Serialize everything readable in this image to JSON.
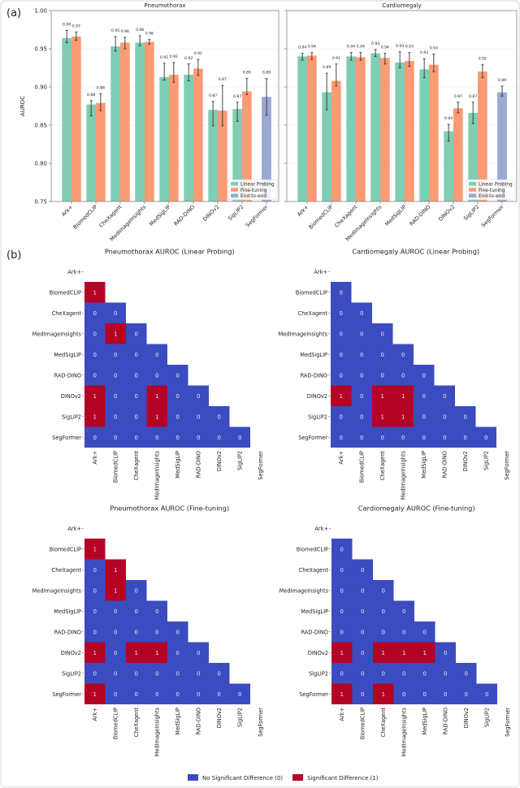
{
  "panel_labels": {
    "a": "(a)",
    "b": "(b)"
  },
  "colors": {
    "linear_probing": "#7fcdb4",
    "fine_tuning": "#fc9a74",
    "end_to_end": "#9aa8d2",
    "no_sig": "#3b4cc0",
    "sig": "#b40426"
  },
  "models": [
    "Ark+",
    "BiomedCLIP",
    "CheXagent",
    "MedImageInsights",
    "MedSigLIP",
    "RAD-DINO",
    "DINOv2",
    "SigLIP2",
    "SegFormer"
  ],
  "chart_data": [
    {
      "type": "bar",
      "title": "Pneumothorax",
      "ylabel": "AUROC",
      "ylim": [
        0.75,
        1.0
      ],
      "yticks": [
        "0.75",
        "0.80",
        "0.85",
        "0.90",
        "0.95",
        "1.00"
      ],
      "grid": true,
      "legend_position": "bottom-right",
      "series": [
        {
          "name": "Linear Probing",
          "values": [
            0.964,
            0.877,
            0.953,
            0.958,
            0.913,
            0.916,
            0.87,
            0.871,
            null
          ],
          "err_low": [
            0.958,
            0.862,
            0.947,
            0.954,
            0.909,
            0.908,
            0.849,
            0.855,
            null
          ],
          "err_high": [
            0.974,
            0.882,
            0.966,
            0.967,
            0.931,
            0.93,
            0.881,
            0.88,
            null
          ],
          "labels": [
            "0.96",
            "0.88",
            "0.95",
            "0.96",
            "0.91",
            "0.92",
            "0.87",
            "0.87",
            null
          ]
        },
        {
          "name": "Fine-tuning",
          "values": [
            0.966,
            0.879,
            0.958,
            0.959,
            0.916,
            0.924,
            0.869,
            0.894,
            null
          ],
          "err_low": [
            0.961,
            0.869,
            0.95,
            0.956,
            0.906,
            0.915,
            0.849,
            0.89,
            null
          ],
          "err_high": [
            0.972,
            0.891,
            0.965,
            0.962,
            0.932,
            0.936,
            0.902,
            0.911,
            null
          ],
          "labels": [
            "0.97",
            "0.88",
            "0.96",
            "0.96",
            "0.92",
            "0.92",
            "0.87",
            "0.89",
            null
          ]
        },
        {
          "name": "End-to-end",
          "values": [
            null,
            null,
            null,
            null,
            null,
            null,
            null,
            null,
            0.887
          ],
          "err_low": [
            null,
            null,
            null,
            null,
            null,
            null,
            null,
            null,
            0.863
          ],
          "err_high": [
            null,
            null,
            null,
            null,
            null,
            null,
            null,
            null,
            0.911
          ],
          "labels": [
            null,
            null,
            null,
            null,
            null,
            null,
            null,
            null,
            "0.89"
          ]
        }
      ]
    },
    {
      "type": "bar",
      "title": "Cardiomegaly",
      "ylabel": "",
      "ylim": [
        0.75,
        1.0
      ],
      "grid": true,
      "legend_position": "bottom-right",
      "series": [
        {
          "name": "Linear Probing",
          "values": [
            0.94,
            0.893,
            0.94,
            0.944,
            0.932,
            0.923,
            0.842,
            0.866,
            null
          ],
          "err_low": [
            0.935,
            0.87,
            0.935,
            0.94,
            0.925,
            0.912,
            0.829,
            0.852,
            null
          ],
          "err_high": [
            0.944,
            0.918,
            0.945,
            0.949,
            0.946,
            0.937,
            0.851,
            0.88,
            null
          ],
          "labels": [
            "0.94",
            "0.89",
            "0.94",
            "0.94",
            "0.93",
            "0.92",
            "0.84",
            "0.87",
            null
          ]
        },
        {
          "name": "Fine-tuning",
          "values": [
            0.941,
            0.908,
            0.939,
            0.938,
            0.934,
            0.929,
            0.872,
            0.92,
            null
          ],
          "err_low": [
            0.936,
            0.901,
            0.935,
            0.93,
            0.927,
            0.92,
            0.866,
            0.912,
            null
          ],
          "err_high": [
            0.945,
            0.93,
            0.945,
            0.944,
            0.945,
            0.943,
            0.88,
            0.929,
            null
          ],
          "labels": [
            "0.94",
            "0.91",
            "0.94",
            "0.94",
            "0.93",
            "0.93",
            "0.87",
            "0.92",
            null
          ]
        },
        {
          "name": "End-to-end",
          "values": [
            null,
            null,
            null,
            null,
            null,
            null,
            null,
            null,
            0.893
          ],
          "err_low": [
            null,
            null,
            null,
            null,
            null,
            null,
            null,
            null,
            0.888
          ],
          "err_high": [
            null,
            null,
            null,
            null,
            null,
            null,
            null,
            null,
            0.901
          ],
          "labels": [
            null,
            null,
            null,
            null,
            null,
            null,
            null,
            null,
            "0.89"
          ]
        }
      ]
    },
    {
      "type": "heatmap",
      "title": "Pneumothorax AUROC (Linear Probing)",
      "lower_triangle": [
        [],
        [
          1
        ],
        [
          0,
          0
        ],
        [
          0,
          1,
          0
        ],
        [
          0,
          0,
          0,
          0
        ],
        [
          0,
          0,
          0,
          0,
          0
        ],
        [
          1,
          0,
          0,
          1,
          0,
          0
        ],
        [
          1,
          0,
          0,
          1,
          0,
          0,
          0
        ],
        [
          0,
          0,
          0,
          0,
          0,
          0,
          0,
          0
        ]
      ]
    },
    {
      "type": "heatmap",
      "title": "Cardiomegaly AUROC (Linear Probing)",
      "lower_triangle": [
        [],
        [
          0
        ],
        [
          0,
          0
        ],
        [
          0,
          0,
          0
        ],
        [
          0,
          0,
          0,
          0
        ],
        [
          0,
          0,
          0,
          0,
          0
        ],
        [
          1,
          0,
          1,
          1,
          0,
          0
        ],
        [
          0,
          0,
          1,
          1,
          0,
          0,
          0
        ],
        [
          0,
          0,
          0,
          0,
          0,
          0,
          0,
          0
        ]
      ]
    },
    {
      "type": "heatmap",
      "title": "Pneumothorax AUROC (Fine-tuning)",
      "lower_triangle": [
        [],
        [
          1
        ],
        [
          0,
          1
        ],
        [
          0,
          1,
          0
        ],
        [
          0,
          0,
          0,
          0
        ],
        [
          0,
          0,
          0,
          0,
          0
        ],
        [
          1,
          0,
          1,
          1,
          0,
          0
        ],
        [
          0,
          0,
          0,
          0,
          0,
          0,
          0
        ],
        [
          1,
          0,
          0,
          0,
          0,
          0,
          0,
          0
        ]
      ]
    },
    {
      "type": "heatmap",
      "title": "Cardiomegaly AUROC (Fine-tuning)",
      "lower_triangle": [
        [],
        [
          0
        ],
        [
          0,
          0
        ],
        [
          0,
          0,
          0
        ],
        [
          0,
          0,
          0,
          0
        ],
        [
          0,
          0,
          0,
          0,
          0
        ],
        [
          1,
          0,
          1,
          1,
          1,
          0
        ],
        [
          0,
          0,
          0,
          0,
          0,
          0,
          0
        ],
        [
          1,
          0,
          1,
          0,
          0,
          0,
          0,
          0
        ]
      ]
    }
  ],
  "heatmap_legend": {
    "no_sig": "No Significant Difference (0)",
    "sig": "Significant Difference (1)"
  }
}
